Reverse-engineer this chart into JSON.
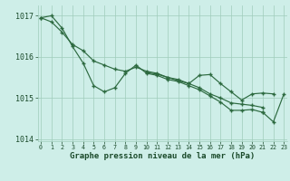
{
  "title": "Graphe pression niveau de la mer (hPa)",
  "background_color": "#ceeee8",
  "line_color": "#2d6a40",
  "text_color": "#1a4a2a",
  "grid_color": "#a0ccbb",
  "hours": [
    0,
    1,
    2,
    3,
    4,
    5,
    6,
    7,
    8,
    9,
    10,
    11,
    12,
    13,
    14,
    15,
    16,
    17,
    18,
    19,
    20,
    21,
    22,
    23
  ],
  "series": [
    [
      1016.95,
      1017.0,
      1016.7,
      1016.25,
      1015.85,
      1015.3,
      1015.15,
      1015.25,
      1015.6,
      1015.8,
      1015.6,
      1015.55,
      1015.45,
      1015.4,
      1015.3,
      1015.2,
      1015.05,
      1014.9,
      1014.7,
      1014.7,
      1014.72,
      1014.65,
      null,
      null
    ],
    [
      1016.95,
      1016.85,
      1016.6,
      1016.3,
      1016.15,
      1015.9,
      1015.8,
      1015.7,
      1015.65,
      1015.75,
      1015.65,
      1015.6,
      1015.5,
      1015.45,
      1015.35,
      1015.25,
      1015.1,
      1015.0,
      1014.88,
      1014.85,
      1014.82,
      1014.77,
      null,
      null
    ],
    [
      null,
      null,
      null,
      null,
      null,
      null,
      null,
      null,
      null,
      null,
      1015.62,
      1015.58,
      1015.5,
      1015.42,
      1015.35,
      1015.55,
      1015.57,
      1015.35,
      1015.15,
      1014.95,
      1015.1,
      1015.12,
      1015.1,
      null
    ],
    [
      null,
      null,
      null,
      null,
      null,
      null,
      null,
      null,
      null,
      null,
      null,
      null,
      null,
      null,
      null,
      null,
      null,
      null,
      null,
      null,
      null,
      1014.65,
      1014.42,
      1015.1
    ]
  ],
  "ylim": [
    1013.95,
    1017.25
  ],
  "yticks": [
    1014,
    1015,
    1016,
    1017
  ],
  "xlim": [
    -0.3,
    23.3
  ]
}
